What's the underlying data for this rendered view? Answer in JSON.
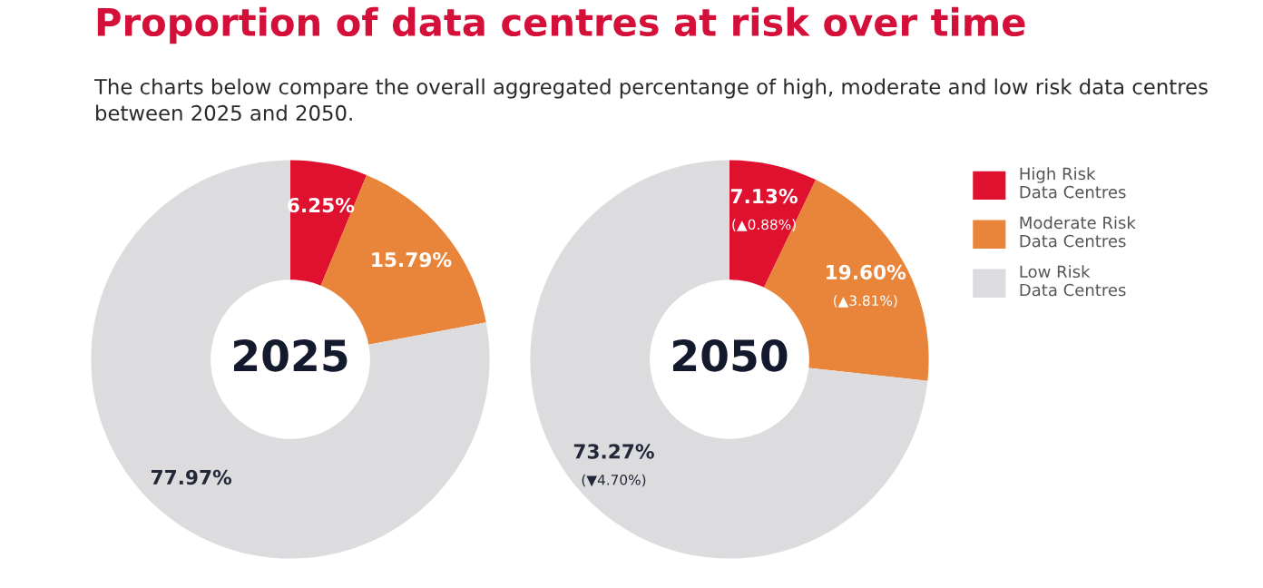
{
  "chart_data": [
    {
      "type": "donut",
      "title": "Proportion of data centres at risk over time",
      "subtitle": "The charts below compare the overall aggregated percentange of high, moderate and low risk data centres between 2025 and 2050.",
      "categories": [
        "High Risk\nData Centres",
        "Moderate Risk\nData Centres",
        "Low Risk\nData Centres"
      ],
      "values": [
        6.25,
        15.79,
        77.97
      ],
      "colors": [
        "#e0102f",
        "#e8853a",
        "#dcdcdf"
      ],
      "value_labels": [
        "6.25%",
        "15.79%",
        "77.97%"
      ],
      "annotations": [
        "2025"
      ],
      "legend": "right"
    },
    {
      "type": "donut",
      "categories": [
        null,
        null,
        null
      ],
      "values": [
        7.13,
        19.6,
        73.27
      ],
      "colors": [
        "#e0102f",
        "#e8853a",
        "#dcdcdf"
      ],
      "value_labels": [
        "7.13%\n(▲0.88%)",
        "19.60%\n(▲3.81%)",
        "73.27%\n(▼4.70%)"
      ],
      "annotations": [
        "2050"
      ]
    }
  ]
}
